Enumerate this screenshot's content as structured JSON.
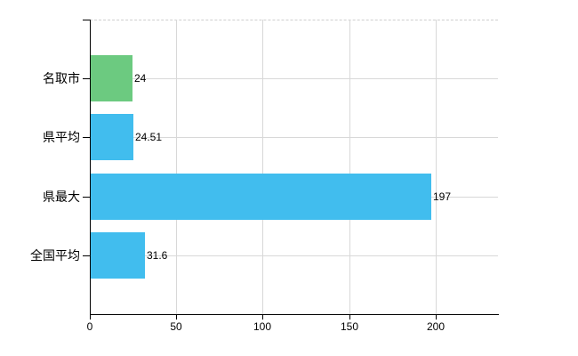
{
  "chart_data": {
    "type": "bar",
    "orientation": "horizontal",
    "title": "",
    "categories": [
      "名取市",
      "県平均",
      "県最大",
      "全国平均"
    ],
    "values": [
      24,
      24.51,
      197,
      31.6
    ],
    "data_labels": [
      "24",
      "24.51",
      "197",
      "31.6"
    ],
    "bar_colors": [
      "#6cca80",
      "#41bdee",
      "#41bdee",
      "#41bdee"
    ],
    "x_ticks": [
      0,
      50,
      100,
      150,
      200
    ],
    "x_tick_labels": [
      "0",
      "50",
      "100",
      "150",
      "200"
    ],
    "xlim": [
      0,
      236
    ],
    "xlabel": "",
    "ylabel": "",
    "grid": true,
    "legend": "none",
    "colors": {
      "bar_blue": "#41bdee",
      "bar_green": "#6cca80",
      "gridline": "#d8d8d8",
      "top_border": "#cfcfcf",
      "axis": "#000000",
      "text": "#000000",
      "background": "#ffffff"
    }
  }
}
